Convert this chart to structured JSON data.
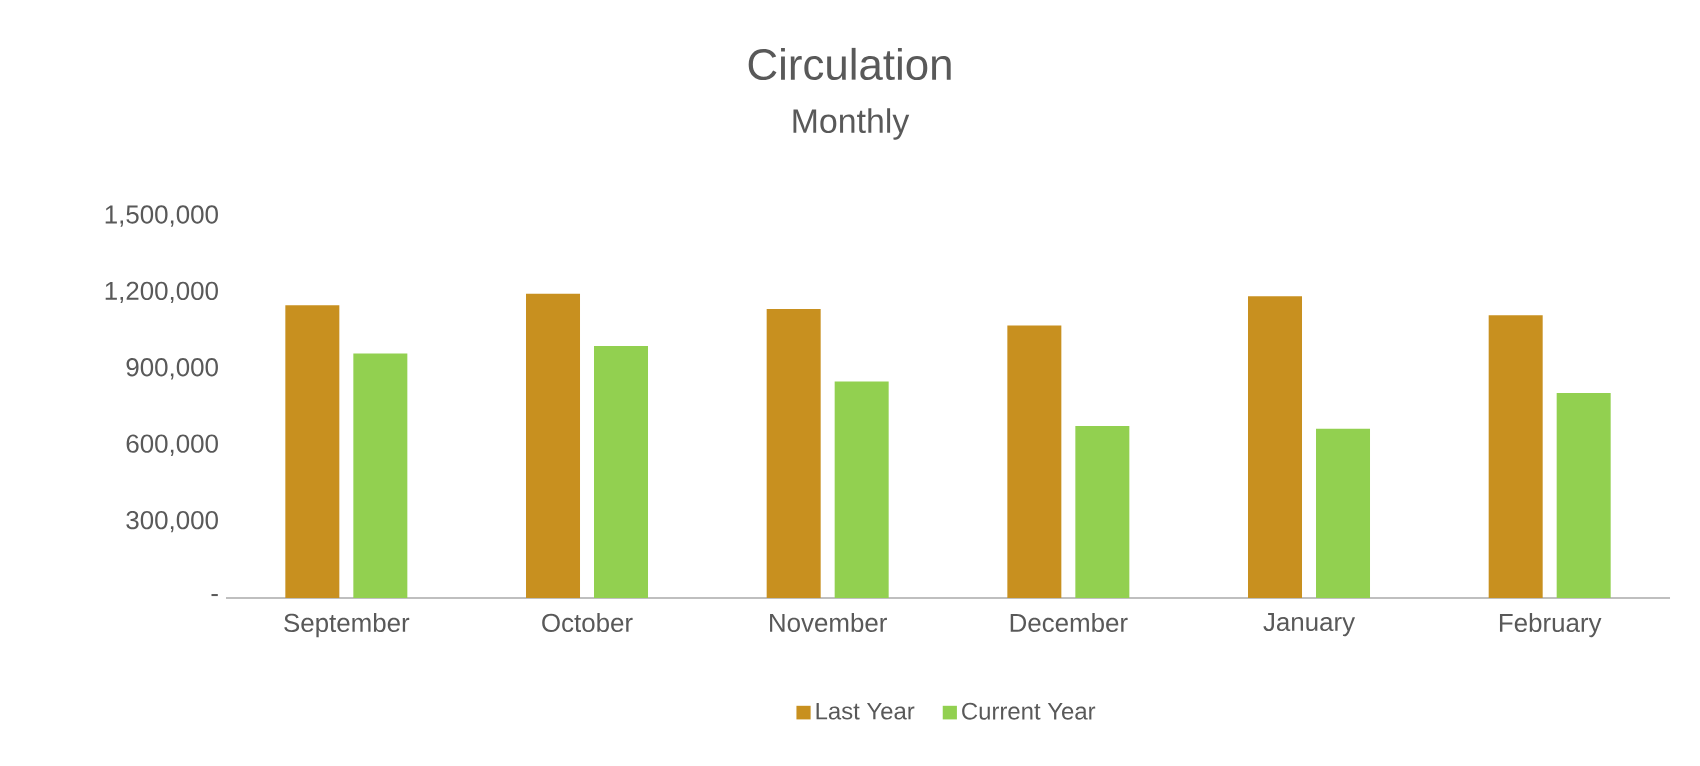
{
  "chart_data": {
    "type": "bar",
    "title": "Circulation",
    "subtitle": "Monthly",
    "categories": [
      "September",
      "October",
      "November",
      "December",
      "January",
      "February"
    ],
    "series": [
      {
        "name": "Last Year",
        "color": "#c8901f",
        "values": [
          1150000,
          1195000,
          1135000,
          1070000,
          1185000,
          1110000
        ]
      },
      {
        "name": "Current Year",
        "color": "#92d050",
        "values": [
          960000,
          990000,
          850000,
          675000,
          665000,
          805000
        ]
      }
    ],
    "ylim": [
      0,
      1500000
    ],
    "yticks": [
      {
        "value": 0,
        "label": "-"
      },
      {
        "value": 300000,
        "label": "300,000"
      },
      {
        "value": 600000,
        "label": "600,000"
      },
      {
        "value": 900000,
        "label": "900,000"
      },
      {
        "value": 1200000,
        "label": "1,200,000"
      },
      {
        "value": 1500000,
        "label": "1,500,000"
      }
    ],
    "legend": "bottom"
  }
}
